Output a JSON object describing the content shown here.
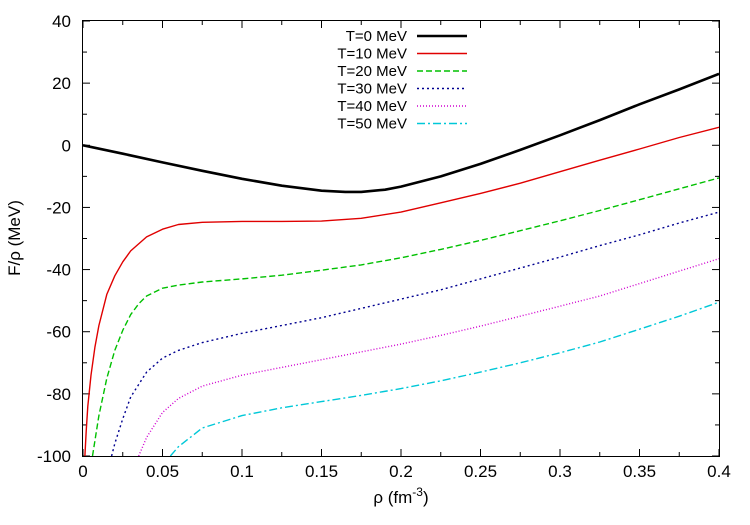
{
  "chart_data": {
    "type": "line",
    "title": "",
    "xlabel": "ρ (fm",
    "xlabel_sup": "-3",
    "xlabel_end": ")",
    "ylabel": "F/ρ (MeV)",
    "xlim": [
      0,
      0.4
    ],
    "ylim": [
      -100,
      40
    ],
    "xticks": [
      0,
      0.05,
      0.1,
      0.15,
      0.2,
      0.25,
      0.3,
      0.35,
      0.4
    ],
    "xtick_labels": [
      "0",
      "0.05",
      "0.1",
      "0.15",
      "0.2",
      "0.25",
      "0.3",
      "0.35",
      "0.4"
    ],
    "yticks": [
      -100,
      -80,
      -60,
      -40,
      -20,
      0,
      20,
      40
    ],
    "ytick_labels": [
      "-100",
      "-80",
      "-60",
      "-40",
      "-20",
      "0",
      "20",
      "40"
    ],
    "legend_position": "top-center",
    "series": [
      {
        "name": "T=0 MeV",
        "color": "#000000",
        "dash": "solid",
        "x": [
          0,
          0.025,
          0.05,
          0.075,
          0.1,
          0.125,
          0.15,
          0.165,
          0.175,
          0.19,
          0.2,
          0.225,
          0.25,
          0.275,
          0.3,
          0.325,
          0.35,
          0.375,
          0.4
        ],
        "y": [
          0,
          -2.7,
          -5.5,
          -8.2,
          -10.8,
          -13,
          -14.6,
          -15,
          -15,
          -14.3,
          -13.3,
          -10,
          -6,
          -1.5,
          3.2,
          8.1,
          13.2,
          18,
          23
        ]
      },
      {
        "name": "T=10 MeV",
        "color": "#e00000",
        "dash": "solid",
        "x": [
          0.0012,
          0.002,
          0.003,
          0.005,
          0.0075,
          0.01,
          0.015,
          0.02,
          0.025,
          0.03,
          0.04,
          0.05,
          0.06,
          0.075,
          0.1,
          0.125,
          0.15,
          0.175,
          0.2,
          0.225,
          0.25,
          0.275,
          0.3,
          0.325,
          0.35,
          0.375,
          0.4
        ],
        "y": [
          -100,
          -92,
          -84,
          -74,
          -65,
          -58,
          -48,
          -42,
          -37.5,
          -34,
          -29.5,
          -27,
          -25.5,
          -24.8,
          -24.5,
          -24.5,
          -24.4,
          -23.5,
          -21.5,
          -18.5,
          -15.5,
          -12.2,
          -8.5,
          -4.8,
          -1.2,
          2.5,
          5.8
        ]
      },
      {
        "name": "T=20 MeV",
        "color": "#00c000",
        "dash": "6,3",
        "x": [
          0.006,
          0.01,
          0.015,
          0.02,
          0.025,
          0.03,
          0.035,
          0.04,
          0.05,
          0.06,
          0.075,
          0.1,
          0.125,
          0.15,
          0.175,
          0.2,
          0.225,
          0.25,
          0.275,
          0.3,
          0.325,
          0.35,
          0.375,
          0.4
        ],
        "y": [
          -100,
          -87,
          -75,
          -66,
          -59.5,
          -54.5,
          -51,
          -48.5,
          -46,
          -45,
          -44,
          -43,
          -41.8,
          -40.2,
          -38.5,
          -36.2,
          -33.5,
          -30.6,
          -27.5,
          -24.3,
          -21,
          -17.5,
          -14,
          -10.5
        ]
      },
      {
        "name": "T=30 MeV",
        "color": "#000090",
        "dash": "2,3",
        "x": [
          0.018,
          0.02,
          0.025,
          0.03,
          0.04,
          0.05,
          0.06,
          0.075,
          0.1,
          0.125,
          0.15,
          0.175,
          0.2,
          0.225,
          0.25,
          0.275,
          0.3,
          0.325,
          0.35,
          0.375,
          0.4
        ],
        "y": [
          -100,
          -96,
          -88,
          -81,
          -73,
          -68.5,
          -66,
          -63.5,
          -60.5,
          -58,
          -55.5,
          -52.5,
          -49.5,
          -46.5,
          -43,
          -39.5,
          -36,
          -32.3,
          -28.8,
          -25,
          -21.5
        ]
      },
      {
        "name": "T=40 MeV",
        "color": "#d000d0",
        "dash": "1,2",
        "x": [
          0.035,
          0.04,
          0.05,
          0.06,
          0.075,
          0.1,
          0.125,
          0.15,
          0.175,
          0.2,
          0.225,
          0.25,
          0.275,
          0.3,
          0.325,
          0.35,
          0.375,
          0.4
        ],
        "y": [
          -100,
          -94,
          -86,
          -81.5,
          -77.5,
          -74,
          -71.5,
          -69,
          -66.5,
          -64,
          -61.2,
          -58.2,
          -55,
          -51.8,
          -48.5,
          -44.5,
          -40.5,
          -36.5
        ]
      },
      {
        "name": "T=50 MeV",
        "color": "#00c8d8",
        "dash": "8,3,2,3",
        "x": [
          0.055,
          0.06,
          0.075,
          0.1,
          0.125,
          0.15,
          0.175,
          0.2,
          0.225,
          0.25,
          0.275,
          0.3,
          0.325,
          0.35,
          0.375,
          0.4
        ],
        "y": [
          -100,
          -97,
          -91,
          -87,
          -84.5,
          -82.5,
          -80.5,
          -78.3,
          -75.8,
          -73,
          -70,
          -66.8,
          -63.3,
          -59.2,
          -55,
          -50.5
        ]
      }
    ]
  }
}
